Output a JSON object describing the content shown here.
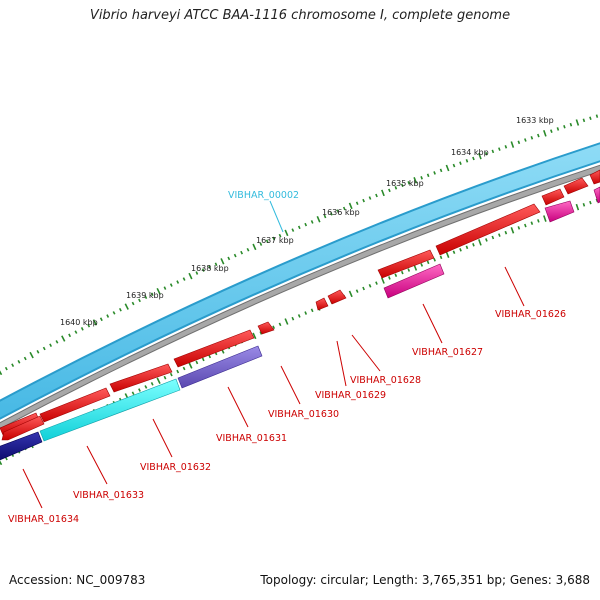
{
  "title": "Vibrio harveyi ATCC BAA-1116 chromosome I, complete genome",
  "footer": {
    "accession": "Accession: NC_009783",
    "summary": "Topology: circular; Length: 3,765,351 bp; Genes: 3,688"
  },
  "colors": {
    "backbone_light": "#66ccee",
    "backbone_dark": "#2a9ccc",
    "backbone_gray": "#8c8c8c",
    "forward_gene": "#e81414",
    "reverse_red": "#e81414",
    "reverse_magenta": "#e0189a",
    "reverse_purple": "#7060c8",
    "reverse_cyan": "#30f0f0",
    "reverse_navy": "#16168c",
    "tick_green": "#2a8a2a",
    "label_red": "#cc0000",
    "label_cyan": "#33bbdd"
  },
  "scale_labels": [
    "1633 kbp",
    "1634 kbp",
    "1635 kbp",
    "1636 kbp",
    "1637 kbp",
    "1638 kbp",
    "1639 kbp",
    "1640 kbp"
  ],
  "outer_gene_label": "VIBHAR_00002",
  "gene_labels": [
    "VIBHAR_01626",
    "VIBHAR_01627",
    "VIBHAR_01628",
    "VIBHAR_01629",
    "VIBHAR_01630",
    "VIBHAR_01631",
    "VIBHAR_01632",
    "VIBHAR_01633",
    "VIBHAR_01634"
  ]
}
